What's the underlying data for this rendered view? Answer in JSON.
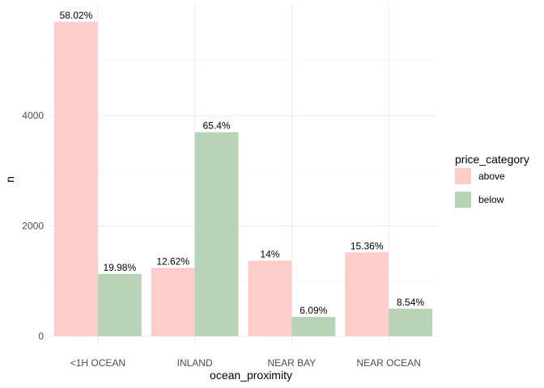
{
  "chart_data": {
    "type": "bar",
    "xlabel": "ocean_proximity",
    "ylabel": "n",
    "categories": [
      "<1H OCEAN",
      "INLAND",
      "NEAR BAY",
      "NEAR OCEAN"
    ],
    "series": [
      {
        "name": "above",
        "color": "#ffcccc",
        "values": [
          5700,
          1240,
          1370,
          1520
        ],
        "labels": [
          "58.02%",
          "12.62%",
          "14%",
          "15.36%"
        ]
      },
      {
        "name": "below",
        "color": "#b8d4b8",
        "values": [
          1130,
          3700,
          350,
          500
        ],
        "labels": [
          "19.98%",
          "65.4%",
          "6.09%",
          "8.54%"
        ]
      }
    ],
    "ylim": [
      0,
      5850
    ],
    "yticks": [
      0,
      2000,
      4000
    ],
    "grid": true,
    "legend": {
      "title": "price_category",
      "position": "right",
      "entries": [
        "above",
        "below"
      ]
    }
  }
}
